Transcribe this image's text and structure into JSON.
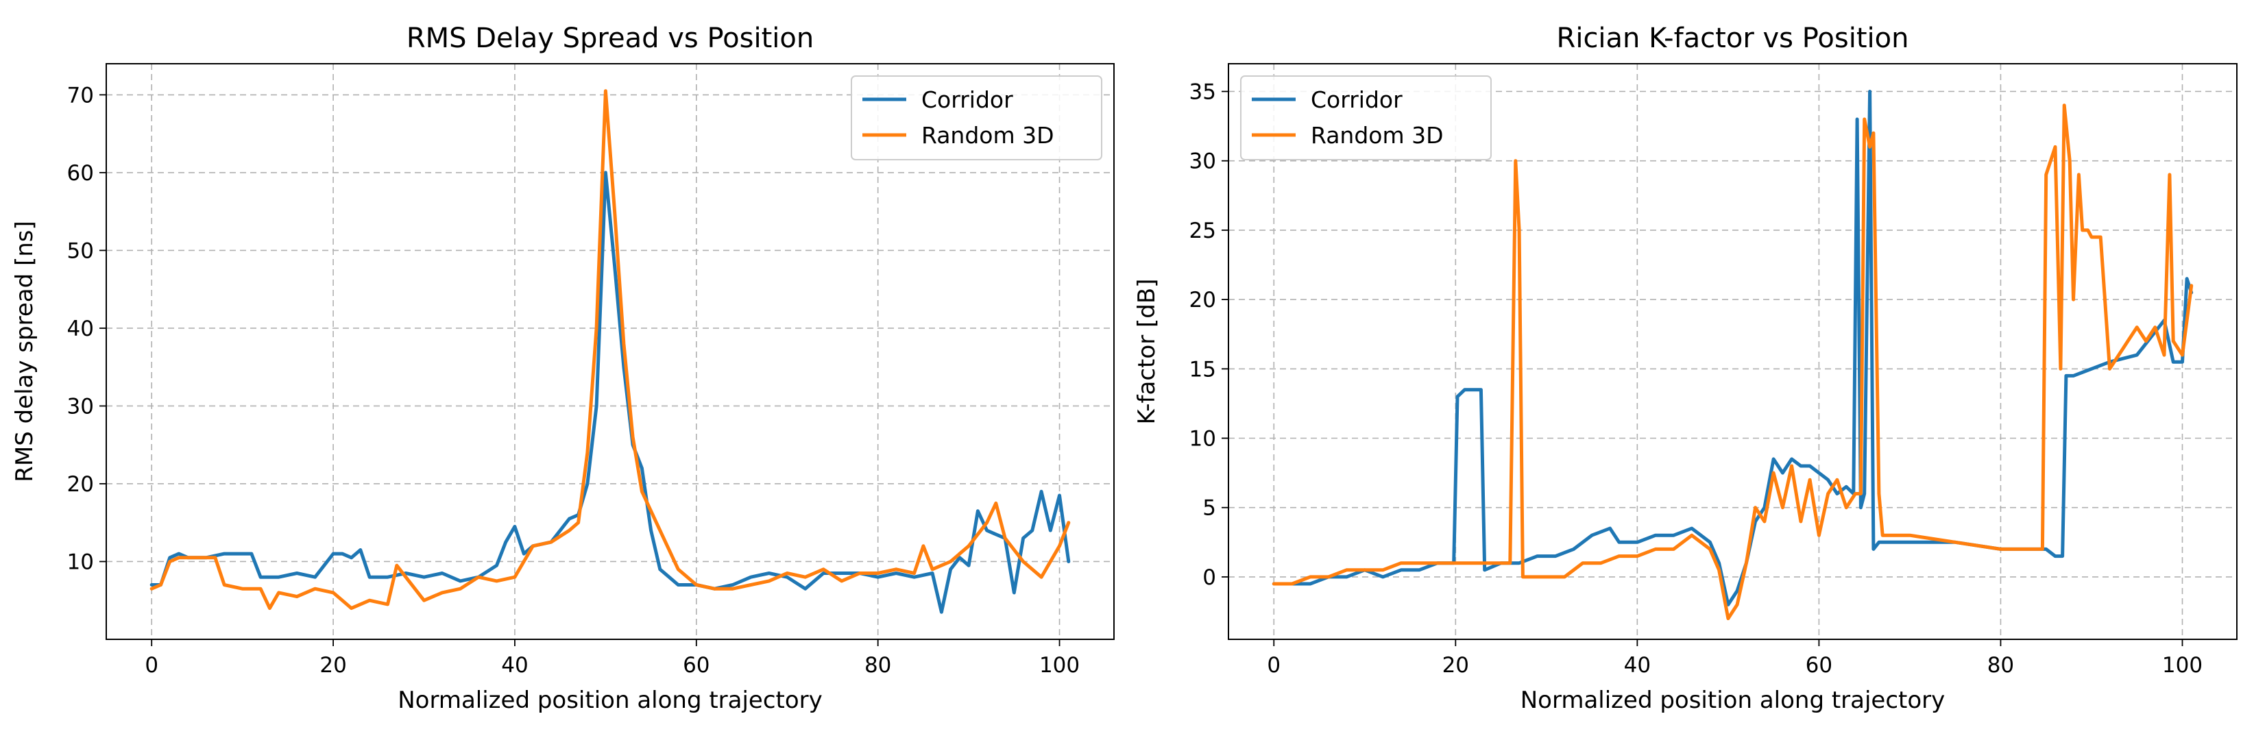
{
  "chart_data": [
    {
      "type": "line",
      "title": "RMS Delay Spread vs Position",
      "xlabel": "Normalized position along trajectory",
      "ylabel": "RMS delay spread [ns]",
      "xlim": [
        -5,
        106
      ],
      "ylim": [
        0,
        74
      ],
      "xticks": [
        "0",
        "20",
        "40",
        "60",
        "80",
        "100"
      ],
      "yticks": [
        "10",
        "20",
        "30",
        "40",
        "50",
        "60",
        "70"
      ],
      "grid": true,
      "legend_position": "top-right",
      "series": [
        {
          "name": "Corridor",
          "color": "#1f77b4",
          "x": [
            0,
            1,
            2,
            3,
            4,
            6,
            8,
            10,
            11,
            12,
            14,
            16,
            18,
            20,
            21,
            22,
            23,
            24,
            26,
            28,
            30,
            32,
            34,
            36,
            38,
            39,
            40,
            41,
            42,
            44,
            46,
            47,
            48,
            49,
            50,
            51,
            52,
            53,
            54,
            55,
            56,
            58,
            60,
            62,
            64,
            66,
            68,
            70,
            72,
            74,
            76,
            78,
            80,
            82,
            84,
            86,
            87,
            88,
            89,
            90,
            91,
            92,
            93,
            94,
            95,
            96,
            97,
            98,
            99,
            100,
            101
          ],
          "y": [
            7,
            7,
            10.5,
            11,
            10.5,
            10.5,
            11,
            11,
            11,
            8,
            8,
            8.5,
            8,
            11,
            11,
            10.5,
            11.5,
            8,
            8,
            8.5,
            8,
            8.5,
            7.5,
            8,
            9.5,
            12.5,
            14.5,
            11,
            12,
            12.5,
            15.5,
            16,
            20,
            30,
            60,
            48,
            35,
            25,
            22,
            14,
            9,
            7,
            7,
            6.5,
            7,
            8,
            8.5,
            8,
            6.5,
            8.5,
            8.5,
            8.5,
            8,
            8.5,
            8,
            8.5,
            3.5,
            9,
            10.5,
            9.5,
            16.5,
            14,
            13.5,
            13,
            6,
            13,
            14,
            19,
            14,
            18.5,
            10
          ]
        },
        {
          "name": "Random 3D",
          "color": "#ff7f0e",
          "x": [
            0,
            1,
            2,
            3,
            4,
            6,
            7,
            8,
            10,
            12,
            13,
            14,
            16,
            18,
            20,
            22,
            24,
            26,
            27,
            28,
            30,
            32,
            34,
            36,
            38,
            40,
            42,
            44,
            46,
            47,
            48,
            49,
            50,
            51,
            52,
            53,
            54,
            56,
            58,
            60,
            62,
            64,
            66,
            68,
            70,
            72,
            74,
            76,
            78,
            80,
            82,
            84,
            85,
            86,
            88,
            90,
            92,
            93,
            94,
            96,
            98,
            100,
            101
          ],
          "y": [
            6.5,
            7,
            10,
            10.5,
            10.5,
            10.5,
            10.5,
            7,
            6.5,
            6.5,
            4,
            6,
            5.5,
            6.5,
            6,
            4,
            5,
            4.5,
            9.5,
            8,
            5,
            6,
            6.5,
            8,
            7.5,
            8,
            12,
            12.5,
            14,
            15,
            24,
            40,
            70.5,
            55,
            38,
            26,
            19,
            14,
            9,
            7,
            6.5,
            6.5,
            7,
            7.5,
            8.5,
            8,
            9,
            7.5,
            8.5,
            8.5,
            9,
            8.5,
            12,
            9,
            10,
            12,
            15,
            17.5,
            13,
            10,
            8,
            12,
            15
          ]
        }
      ]
    },
    {
      "type": "line",
      "title": "Rician K-factor vs Position",
      "xlabel": "Normalized position along trajectory",
      "ylabel": "K-factor [dB]",
      "xlim": [
        -5,
        106
      ],
      "ylim": [
        -4.5,
        37
      ],
      "xticks": [
        "0",
        "20",
        "40",
        "60",
        "80",
        "100"
      ],
      "yticks": [
        "0",
        "5",
        "10",
        "15",
        "20",
        "25",
        "30",
        "35"
      ],
      "grid": true,
      "legend_position": "top-left",
      "series": [
        {
          "name": "Corridor",
          "color": "#1f77b4",
          "x": [
            0,
            2,
            4,
            6,
            8,
            10,
            12,
            14,
            16,
            18,
            19.8,
            20.2,
            21,
            22,
            22.8,
            23.2,
            25,
            27,
            29,
            31,
            33,
            35,
            37,
            38,
            40,
            42,
            44,
            46,
            48,
            49,
            50,
            51,
            52,
            53,
            54,
            55,
            56,
            57,
            58,
            59,
            60,
            61,
            62,
            63,
            63.8,
            64.2,
            64.6,
            65,
            65.6,
            66,
            66.6,
            67,
            70,
            75,
            80,
            85,
            86,
            86.8,
            87.2,
            88,
            90,
            92,
            95,
            98,
            99,
            100,
            100.5,
            101
          ],
          "y": [
            -0.5,
            -0.5,
            -0.5,
            0,
            0,
            0.5,
            0,
            0.5,
            0.5,
            1,
            1,
            13,
            13.5,
            13.5,
            13.5,
            0.5,
            1,
            1,
            1.5,
            1.5,
            2,
            3,
            3.5,
            2.5,
            2.5,
            3,
            3,
            3.5,
            2.5,
            1,
            -2,
            -1,
            1,
            4,
            5,
            8.5,
            7.5,
            8.5,
            8,
            8,
            7.5,
            7,
            6,
            6.5,
            6,
            33,
            5,
            6,
            35,
            2,
            2.5,
            2.5,
            2.5,
            2.5,
            2,
            2,
            1.5,
            1.5,
            14.5,
            14.5,
            15,
            15.5,
            16,
            18.5,
            15.5,
            15.5,
            21.5,
            20.5
          ]
        },
        {
          "name": "Random 3D",
          "color": "#ff7f0e",
          "x": [
            0,
            2,
            4,
            6,
            8,
            10,
            12,
            14,
            16,
            18,
            20,
            22,
            24,
            26,
            26.6,
            27,
            27.4,
            28,
            30,
            32,
            34,
            36,
            38,
            40,
            42,
            44,
            46,
            48,
            49,
            50,
            51,
            52,
            53,
            54,
            55,
            56,
            57,
            58,
            59,
            60,
            61,
            62,
            63,
            64,
            64.6,
            65,
            65.6,
            66,
            66.6,
            67,
            70,
            75,
            80,
            84.6,
            85,
            86,
            86.6,
            87,
            87.6,
            88,
            88.6,
            89,
            89.6,
            90,
            91,
            92,
            93,
            94,
            95,
            96,
            97,
            98,
            98.6,
            99,
            100,
            101
          ],
          "y": [
            -0.5,
            -0.5,
            0,
            0,
            0.5,
            0.5,
            0.5,
            1,
            1,
            1,
            1,
            1,
            1,
            1,
            30,
            25,
            0,
            0,
            0,
            0,
            1,
            1,
            1.5,
            1.5,
            2,
            2,
            3,
            2,
            0.5,
            -3,
            -2,
            1,
            5,
            4,
            7.5,
            5,
            8,
            4,
            7,
            3,
            6,
            7,
            5,
            6,
            6,
            33,
            31,
            32,
            6,
            3,
            3,
            2.5,
            2,
            2,
            29,
            31,
            15,
            34,
            30,
            20,
            29,
            25,
            25,
            24.5,
            24.5,
            15,
            16,
            17,
            18,
            17,
            18,
            16,
            29,
            17,
            16,
            21
          ]
        }
      ]
    }
  ]
}
